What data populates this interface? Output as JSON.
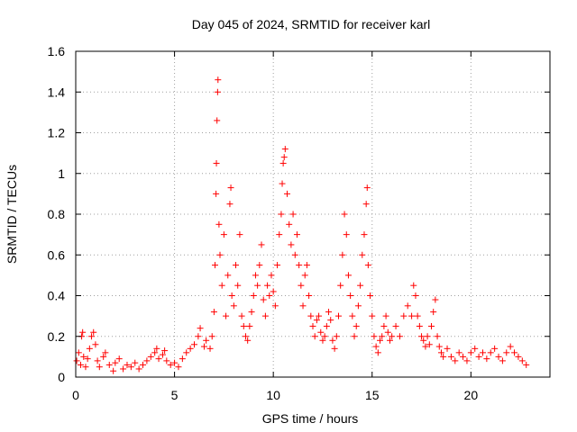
{
  "chart_data": {
    "type": "scatter",
    "title": "Day 045 of 2024, SRMTID for receiver karl",
    "xlabel": "GPS time / hours",
    "ylabel": "SRMTID / TECUs",
    "xlim": [
      0,
      24
    ],
    "ylim": [
      0,
      1.6
    ],
    "x_ticks": [
      0,
      5,
      10,
      15,
      20
    ],
    "x_tick_labels": [
      "0",
      "5",
      "10",
      "15",
      "20"
    ],
    "y_ticks": [
      0,
      0.2,
      0.4,
      0.6,
      0.8,
      1.0,
      1.2,
      1.4,
      1.6
    ],
    "y_tick_labels": [
      "0",
      "0.2",
      "0.4",
      "0.6",
      "0.8",
      "1",
      "1.2",
      "1.4",
      "1.6"
    ],
    "grid": true,
    "marker": "plus",
    "color": "#ff0000",
    "series": [
      {
        "name": "SRMTID",
        "points": [
          [
            0.05,
            0.08
          ],
          [
            0.15,
            0.12
          ],
          [
            0.25,
            0.06
          ],
          [
            0.3,
            0.2
          ],
          [
            0.35,
            0.22
          ],
          [
            0.4,
            0.1
          ],
          [
            0.5,
            0.05
          ],
          [
            0.6,
            0.09
          ],
          [
            0.7,
            0.14
          ],
          [
            0.8,
            0.2
          ],
          [
            0.9,
            0.22
          ],
          [
            1.0,
            0.16
          ],
          [
            1.1,
            0.08
          ],
          [
            1.2,
            0.05
          ],
          [
            1.4,
            0.1
          ],
          [
            1.5,
            0.12
          ],
          [
            1.7,
            0.06
          ],
          [
            1.9,
            0.03
          ],
          [
            2.0,
            0.07
          ],
          [
            2.2,
            0.09
          ],
          [
            2.4,
            0.04
          ],
          [
            2.6,
            0.06
          ],
          [
            2.8,
            0.05
          ],
          [
            3.0,
            0.07
          ],
          [
            3.2,
            0.04
          ],
          [
            3.4,
            0.06
          ],
          [
            3.6,
            0.08
          ],
          [
            3.8,
            0.1
          ],
          [
            4.0,
            0.12
          ],
          [
            4.1,
            0.14
          ],
          [
            4.2,
            0.09
          ],
          [
            4.4,
            0.11
          ],
          [
            4.5,
            0.13
          ],
          [
            4.6,
            0.08
          ],
          [
            4.8,
            0.06
          ],
          [
            5.0,
            0.07
          ],
          [
            5.2,
            0.05
          ],
          [
            5.4,
            0.09
          ],
          [
            5.6,
            0.12
          ],
          [
            5.8,
            0.14
          ],
          [
            6.0,
            0.16
          ],
          [
            6.2,
            0.2
          ],
          [
            6.3,
            0.24
          ],
          [
            6.5,
            0.15
          ],
          [
            6.6,
            0.18
          ],
          [
            6.8,
            0.14
          ],
          [
            6.9,
            0.2
          ],
          [
            7.0,
            0.32
          ],
          [
            7.05,
            0.55
          ],
          [
            7.1,
            0.9
          ],
          [
            7.12,
            1.05
          ],
          [
            7.15,
            1.26
          ],
          [
            7.18,
            1.4
          ],
          [
            7.2,
            1.46
          ],
          [
            7.25,
            0.75
          ],
          [
            7.3,
            0.6
          ],
          [
            7.4,
            0.45
          ],
          [
            7.5,
            0.7
          ],
          [
            7.6,
            0.3
          ],
          [
            7.7,
            0.5
          ],
          [
            7.8,
            0.85
          ],
          [
            7.85,
            0.93
          ],
          [
            7.9,
            0.4
          ],
          [
            8.0,
            0.35
          ],
          [
            8.1,
            0.55
          ],
          [
            8.2,
            0.45
          ],
          [
            8.3,
            0.7
          ],
          [
            8.4,
            0.3
          ],
          [
            8.5,
            0.25
          ],
          [
            8.6,
            0.2
          ],
          [
            8.7,
            0.18
          ],
          [
            8.8,
            0.25
          ],
          [
            8.9,
            0.32
          ],
          [
            9.0,
            0.4
          ],
          [
            9.1,
            0.5
          ],
          [
            9.2,
            0.45
          ],
          [
            9.3,
            0.55
          ],
          [
            9.4,
            0.65
          ],
          [
            9.5,
            0.38
          ],
          [
            9.6,
            0.3
          ],
          [
            9.7,
            0.45
          ],
          [
            9.8,
            0.4
          ],
          [
            9.9,
            0.5
          ],
          [
            10.0,
            0.42
          ],
          [
            10.1,
            0.35
          ],
          [
            10.2,
            0.55
          ],
          [
            10.3,
            0.7
          ],
          [
            10.4,
            0.8
          ],
          [
            10.45,
            0.95
          ],
          [
            10.5,
            1.05
          ],
          [
            10.55,
            1.08
          ],
          [
            10.6,
            1.12
          ],
          [
            10.7,
            0.9
          ],
          [
            10.8,
            0.75
          ],
          [
            10.9,
            0.65
          ],
          [
            11.0,
            0.8
          ],
          [
            11.1,
            0.6
          ],
          [
            11.2,
            0.7
          ],
          [
            11.3,
            0.55
          ],
          [
            11.4,
            0.45
          ],
          [
            11.5,
            0.35
          ],
          [
            11.6,
            0.5
          ],
          [
            11.7,
            0.55
          ],
          [
            11.8,
            0.4
          ],
          [
            11.9,
            0.3
          ],
          [
            12.0,
            0.25
          ],
          [
            12.1,
            0.2
          ],
          [
            12.2,
            0.28
          ],
          [
            12.3,
            0.3
          ],
          [
            12.4,
            0.22
          ],
          [
            12.5,
            0.18
          ],
          [
            12.6,
            0.2
          ],
          [
            12.7,
            0.25
          ],
          [
            12.8,
            0.32
          ],
          [
            12.9,
            0.28
          ],
          [
            13.0,
            0.18
          ],
          [
            13.1,
            0.14
          ],
          [
            13.2,
            0.2
          ],
          [
            13.3,
            0.3
          ],
          [
            13.4,
            0.45
          ],
          [
            13.5,
            0.6
          ],
          [
            13.6,
            0.8
          ],
          [
            13.7,
            0.7
          ],
          [
            13.8,
            0.5
          ],
          [
            13.9,
            0.4
          ],
          [
            14.0,
            0.3
          ],
          [
            14.1,
            0.2
          ],
          [
            14.2,
            0.25
          ],
          [
            14.3,
            0.35
          ],
          [
            14.4,
            0.45
          ],
          [
            14.5,
            0.6
          ],
          [
            14.6,
            0.7
          ],
          [
            14.7,
            0.85
          ],
          [
            14.75,
            0.93
          ],
          [
            14.8,
            0.55
          ],
          [
            14.9,
            0.4
          ],
          [
            15.0,
            0.3
          ],
          [
            15.1,
            0.2
          ],
          [
            15.2,
            0.15
          ],
          [
            15.3,
            0.12
          ],
          [
            15.4,
            0.18
          ],
          [
            15.5,
            0.2
          ],
          [
            15.6,
            0.25
          ],
          [
            15.7,
            0.3
          ],
          [
            15.8,
            0.22
          ],
          [
            15.9,
            0.18
          ],
          [
            16.0,
            0.2
          ],
          [
            16.2,
            0.25
          ],
          [
            16.4,
            0.2
          ],
          [
            16.6,
            0.3
          ],
          [
            16.8,
            0.35
          ],
          [
            17.0,
            0.3
          ],
          [
            17.1,
            0.45
          ],
          [
            17.2,
            0.4
          ],
          [
            17.3,
            0.3
          ],
          [
            17.4,
            0.25
          ],
          [
            17.5,
            0.2
          ],
          [
            17.6,
            0.18
          ],
          [
            17.7,
            0.15
          ],
          [
            17.8,
            0.2
          ],
          [
            17.9,
            0.16
          ],
          [
            18.0,
            0.25
          ],
          [
            18.1,
            0.32
          ],
          [
            18.2,
            0.38
          ],
          [
            18.3,
            0.2
          ],
          [
            18.4,
            0.15
          ],
          [
            18.5,
            0.12
          ],
          [
            18.6,
            0.1
          ],
          [
            18.8,
            0.14
          ],
          [
            19.0,
            0.1
          ],
          [
            19.2,
            0.08
          ],
          [
            19.4,
            0.12
          ],
          [
            19.6,
            0.1
          ],
          [
            19.8,
            0.08
          ],
          [
            20.0,
            0.12
          ],
          [
            20.2,
            0.14
          ],
          [
            20.4,
            0.1
          ],
          [
            20.6,
            0.12
          ],
          [
            20.8,
            0.09
          ],
          [
            21.0,
            0.12
          ],
          [
            21.2,
            0.14
          ],
          [
            21.4,
            0.1
          ],
          [
            21.6,
            0.08
          ],
          [
            21.8,
            0.12
          ],
          [
            22.0,
            0.15
          ],
          [
            22.2,
            0.12
          ],
          [
            22.4,
            0.1
          ],
          [
            22.6,
            0.08
          ],
          [
            22.8,
            0.06
          ]
        ]
      }
    ]
  }
}
